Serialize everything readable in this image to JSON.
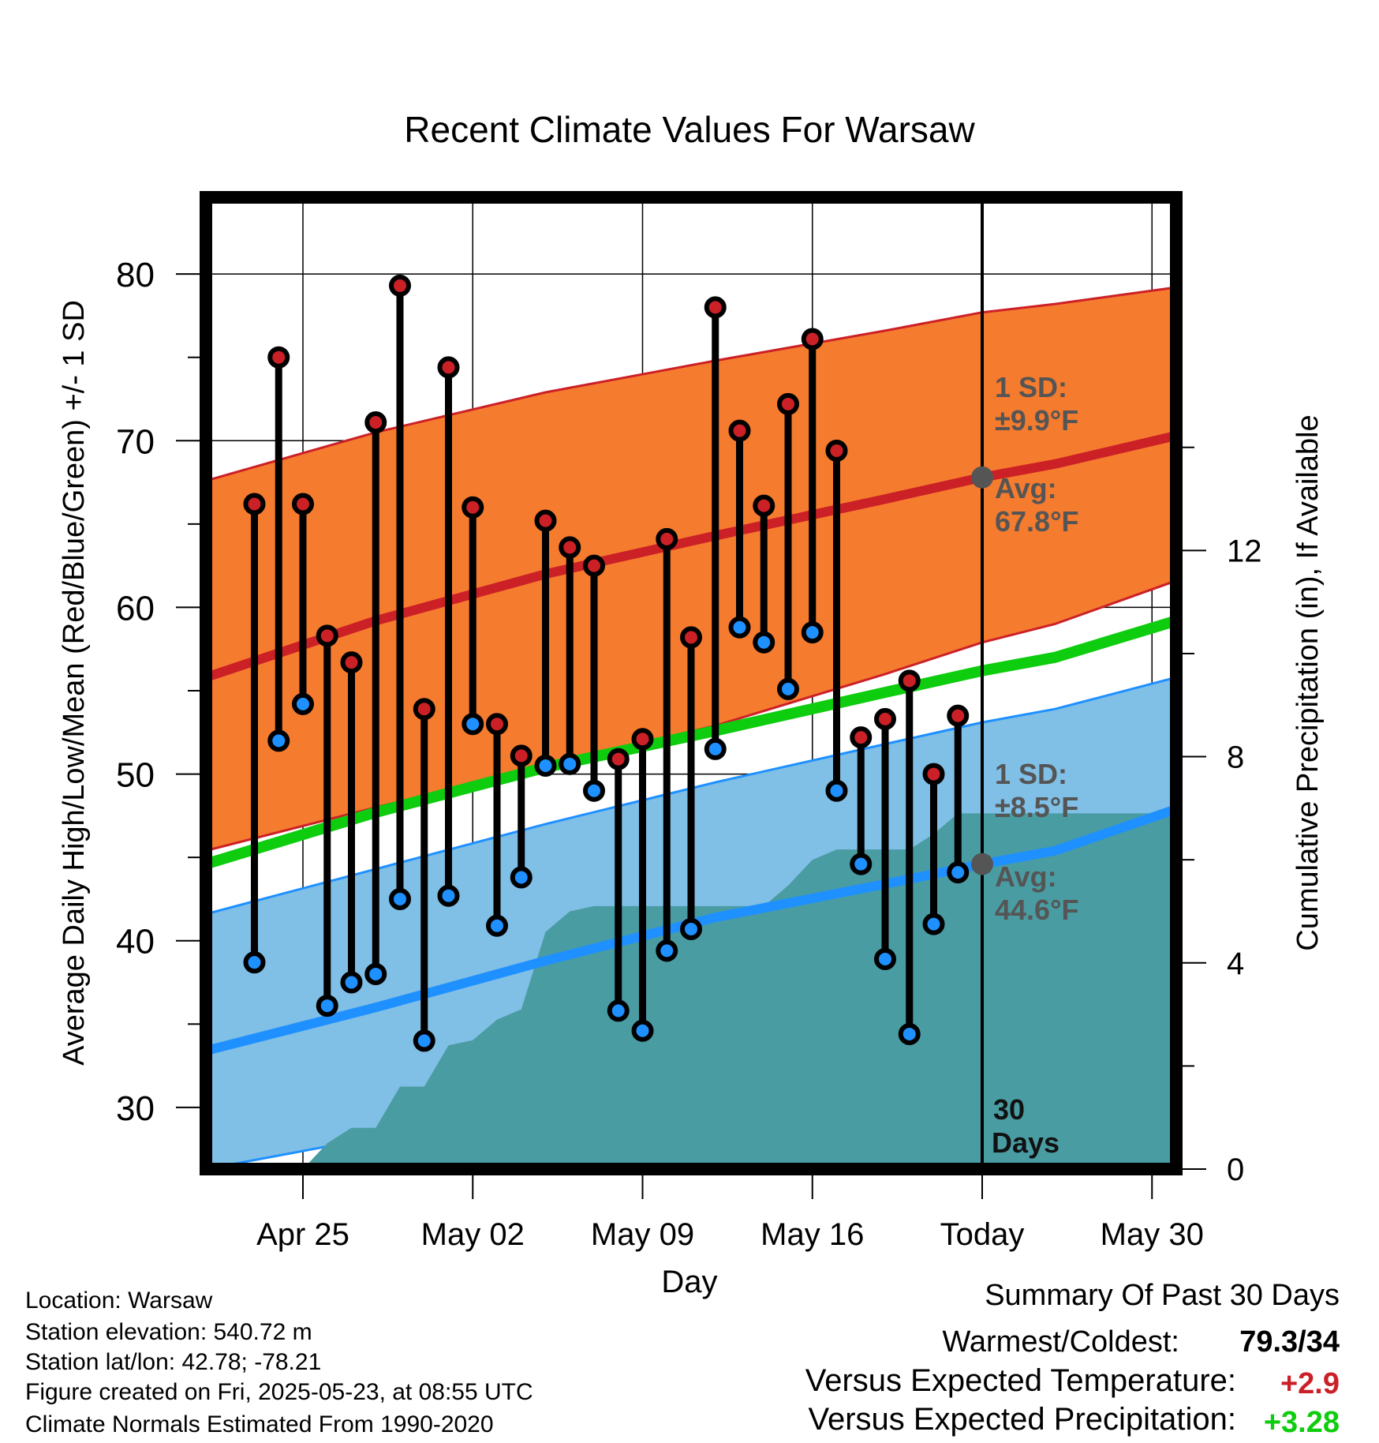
{
  "title": "Recent Climate Values For Warsaw",
  "chart_data": {
    "type": "line",
    "title": "Recent Climate Values For Warsaw",
    "xlabel": "Day",
    "ylabel": "Average Daily High/Low/Mean (Red/Blue/Green) +/- 1 SD",
    "y2label": "Cumulative Precipitation (in), If Available",
    "ylim": [
      26.3,
      84.6
    ],
    "y2lim": [
      0,
      18.85
    ],
    "xlim": [
      "2025-04-21",
      "2025-05-31"
    ],
    "yticks": [
      "30",
      "40",
      "50",
      "60",
      "70",
      "80"
    ],
    "y2ticks": [
      "0",
      "4",
      "8",
      "12"
    ],
    "xticks": [
      {
        "date": "2025-04-25",
        "label": "Apr 25"
      },
      {
        "date": "2025-05-02",
        "label": "May 02"
      },
      {
        "date": "2025-05-09",
        "label": "May 09"
      },
      {
        "date": "2025-05-16",
        "label": "May 16"
      },
      {
        "date": "2025-05-23",
        "label": "Today"
      },
      {
        "date": "2025-05-30",
        "label": "May 30"
      }
    ],
    "grid": true,
    "today": "2025-05-23",
    "today_label": [
      "30",
      "Days"
    ],
    "colors": {
      "high_band": "#f57b2e",
      "high_line": "#cc2027",
      "low_band": "#80bfe6",
      "low_line": "#1e90ff",
      "mean_line": "#0ecc0e",
      "precip": "#4a9ca3",
      "high_marker": "#cc2027",
      "low_marker": "#1e90ff",
      "annotation": "#555555",
      "positive_temp": "#cc2027",
      "positive_precip": "#0ecc0e"
    },
    "normals": {
      "dates": [
        "2025-04-21",
        "2025-04-28",
        "2025-05-05",
        "2025-05-12",
        "2025-05-19",
        "2025-05-23",
        "2025-05-26",
        "2025-05-31"
      ],
      "high_avg": [
        55.8,
        59.2,
        62.0,
        64.3,
        66.5,
        67.8,
        68.6,
        70.3
      ],
      "high_upper": [
        67.6,
        70.5,
        72.9,
        74.8,
        76.6,
        77.7,
        78.2,
        79.2
      ],
      "high_lower": [
        45.4,
        48.0,
        50.5,
        52.9,
        56.0,
        57.9,
        59.0,
        61.6
      ],
      "mean_avg": [
        44.6,
        47.7,
        50.4,
        52.6,
        54.9,
        56.2,
        57.0,
        59.2
      ],
      "low_avg": [
        33.4,
        36.0,
        38.8,
        41.4,
        43.4,
        44.6,
        45.4,
        47.9
      ],
      "low_upper": [
        41.6,
        44.3,
        47.0,
        49.5,
        51.8,
        53.1,
        53.9,
        55.8
      ],
      "low_lower": [
        26.3,
        28.2,
        30.5,
        32.8,
        35.1,
        36.1,
        37.0,
        39.0
      ]
    },
    "annotations": {
      "high_sd": [
        "1 SD:",
        "±9.9°F"
      ],
      "high_avg": [
        "Avg:",
        "67.8°F"
      ],
      "low_sd": [
        "1 SD:",
        "±8.5°F"
      ],
      "low_avg": [
        "Avg:",
        "44.6°F"
      ]
    },
    "observed": {
      "dates": [
        "2025-04-23",
        "2025-04-24",
        "2025-04-25",
        "2025-04-26",
        "2025-04-27",
        "2025-04-28",
        "2025-04-29",
        "2025-04-30",
        "2025-05-01",
        "2025-05-02",
        "2025-05-03",
        "2025-05-04",
        "2025-05-05",
        "2025-05-06",
        "2025-05-07",
        "2025-05-08",
        "2025-05-09",
        "2025-05-10",
        "2025-05-11",
        "2025-05-12",
        "2025-05-13",
        "2025-05-14",
        "2025-05-15",
        "2025-05-16",
        "2025-05-17",
        "2025-05-18",
        "2025-05-19",
        "2025-05-20",
        "2025-05-21",
        "2025-05-22"
      ],
      "high": [
        66.2,
        75.0,
        66.2,
        58.3,
        56.7,
        71.1,
        79.3,
        53.9,
        74.4,
        66.0,
        53.0,
        51.1,
        65.2,
        63.6,
        62.5,
        50.9,
        52.1,
        64.1,
        58.2,
        78.0,
        70.6,
        66.1,
        72.2,
        76.1,
        69.4,
        52.2,
        53.3,
        55.6,
        50.0,
        53.5
      ],
      "low": [
        38.7,
        52.0,
        54.2,
        36.1,
        37.5,
        38.0,
        42.5,
        34.0,
        42.7,
        53.0,
        40.9,
        43.8,
        50.5,
        50.6,
        49.0,
        35.8,
        34.6,
        39.4,
        40.7,
        51.5,
        58.8,
        57.9,
        55.1,
        58.5,
        49.0,
        44.6,
        38.9,
        34.4,
        41.0,
        44.1
      ]
    },
    "precip": {
      "dates": [
        "2025-04-21",
        "2025-04-25",
        "2025-04-26",
        "2025-04-27",
        "2025-04-28",
        "2025-04-29",
        "2025-04-30",
        "2025-05-01",
        "2025-05-02",
        "2025-05-03",
        "2025-05-04",
        "2025-05-05",
        "2025-05-06",
        "2025-05-07",
        "2025-05-08",
        "2025-05-09",
        "2025-05-10",
        "2025-05-11",
        "2025-05-12",
        "2025-05-13",
        "2025-05-14",
        "2025-05-15",
        "2025-05-16",
        "2025-05-17",
        "2025-05-18",
        "2025-05-19",
        "2025-05-20",
        "2025-05-21",
        "2025-05-22",
        "2025-05-31"
      ],
      "values": [
        0,
        0,
        0.5,
        0.8,
        0.8,
        1.6,
        1.6,
        2.4,
        2.5,
        2.9,
        3.1,
        4.6,
        5.0,
        5.1,
        5.1,
        5.1,
        5.1,
        5.1,
        5.1,
        5.1,
        5.1,
        5.5,
        6.0,
        6.2,
        6.2,
        6.2,
        6.2,
        6.5,
        6.9,
        6.9
      ]
    }
  },
  "info": {
    "location": "Location: Warsaw",
    "elevation": "Station elevation: 540.72 m",
    "latlon": "Station lat/lon: 42.78; -78.21",
    "created": "Figure created on Fri, 2025-05-23, at 08:55 UTC",
    "normals": "Climate Normals Estimated From 1990-2020"
  },
  "summary": {
    "heading": "Summary Of Past 30 Days",
    "warmest_label": "Warmest/Coldest:",
    "warmest_value": "79.3/34",
    "temp_label": "Versus Expected Temperature:",
    "temp_value": "+2.9",
    "precip_label": "Versus Expected Precipitation:",
    "precip_value": "+3.28"
  }
}
